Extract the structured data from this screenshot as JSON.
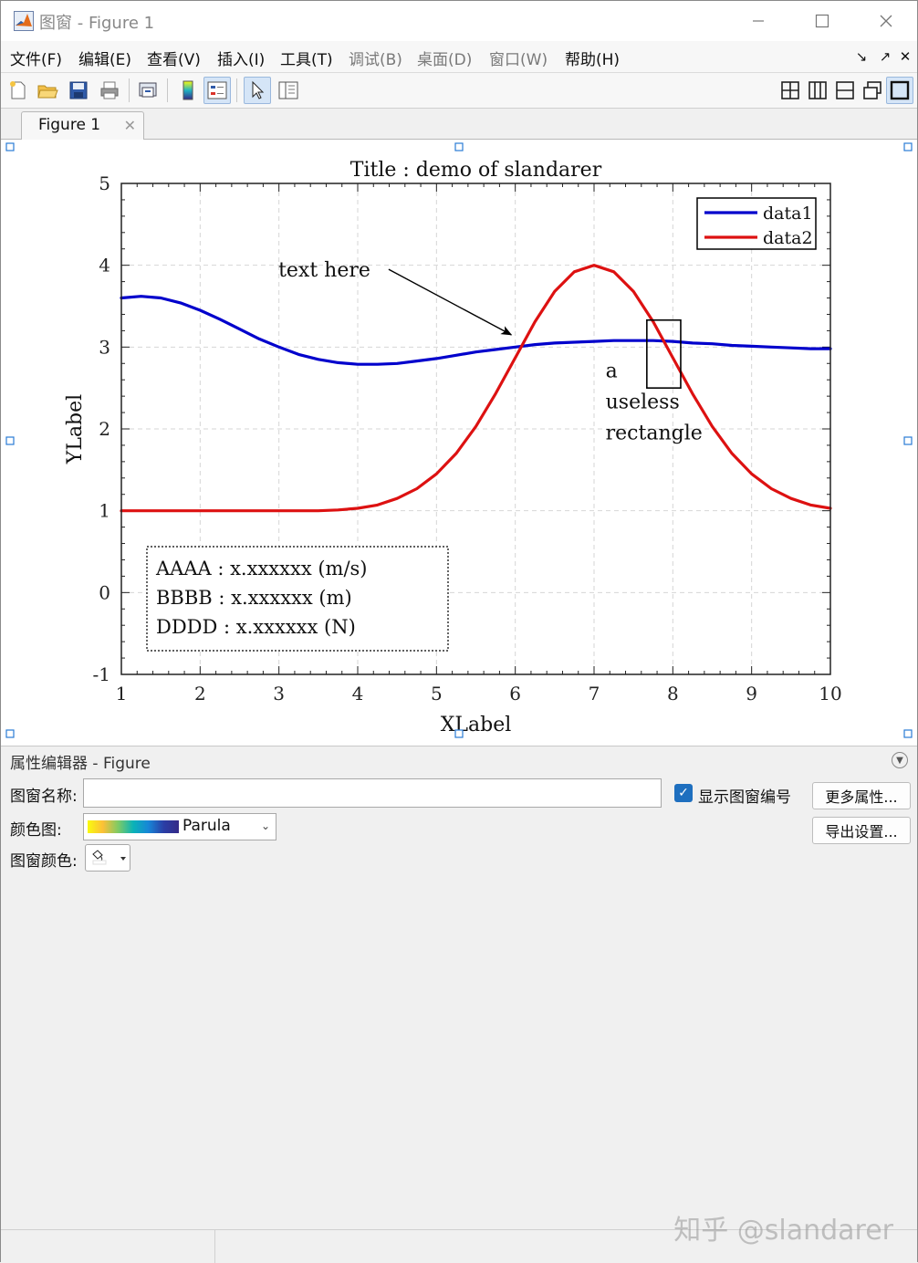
{
  "window": {
    "title": "图窗 - Figure 1",
    "minimize_icon": "minimize-icon",
    "maximize_icon": "maximize-icon",
    "close_icon": "close-icon"
  },
  "menu": {
    "items": [
      {
        "label": "文件(F)",
        "enabled": true
      },
      {
        "label": "编辑(E)",
        "enabled": true
      },
      {
        "label": "查看(V)",
        "enabled": true
      },
      {
        "label": "插入(I)",
        "enabled": true
      },
      {
        "label": "工具(T)",
        "enabled": true
      },
      {
        "label": "调试(B)",
        "enabled": false
      },
      {
        "label": "桌面(D)",
        "enabled": false
      },
      {
        "label": "窗口(W)",
        "enabled": false
      },
      {
        "label": "帮助(H)",
        "enabled": true
      }
    ],
    "corner_icons": [
      "dock-icon",
      "undock-icon",
      "close-icon"
    ]
  },
  "toolbar": {
    "left_icons": [
      "new-figure-icon",
      "open-file-icon",
      "save-icon",
      "print-icon",
      "link-plot-icon",
      "insert-colorbar-icon",
      "insert-legend-icon",
      "edit-plot-icon",
      "property-inspector-icon"
    ],
    "right_icons": [
      "tile-grid-icon",
      "tile-left-right-icon",
      "tile-top-bottom-icon",
      "float-icon",
      "maximize-icon"
    ]
  },
  "tab": {
    "label": "Figure 1"
  },
  "chart_data": {
    "type": "line",
    "title": "Title : demo of slandarer",
    "xlabel": "XLabel",
    "ylabel": "YLabel",
    "xlim": [
      1,
      10
    ],
    "ylim": [
      -1,
      5
    ],
    "xticks": [
      "1",
      "2",
      "3",
      "4",
      "5",
      "6",
      "7",
      "8",
      "9",
      "10"
    ],
    "yticks": [
      "-1",
      "0",
      "1",
      "2",
      "3",
      "4",
      "5"
    ],
    "grid": true,
    "grid_style": "dashed",
    "legend_position": "top-right",
    "x": [
      1,
      1.25,
      1.5,
      1.75,
      2,
      2.25,
      2.5,
      2.75,
      3,
      3.25,
      3.5,
      3.75,
      4,
      4.25,
      4.5,
      4.75,
      5,
      5.25,
      5.5,
      5.75,
      6,
      6.25,
      6.5,
      6.75,
      7,
      7.25,
      7.5,
      7.75,
      8,
      8.25,
      8.5,
      8.75,
      9,
      9.25,
      9.5,
      9.75,
      10
    ],
    "series": [
      {
        "name": "data1",
        "color": "#0000cc",
        "values": [
          3.6,
          3.62,
          3.6,
          3.54,
          3.45,
          3.34,
          3.22,
          3.1,
          3.0,
          2.91,
          2.85,
          2.81,
          2.79,
          2.79,
          2.8,
          2.83,
          2.86,
          2.9,
          2.94,
          2.97,
          3.0,
          3.03,
          3.05,
          3.06,
          3.07,
          3.08,
          3.08,
          3.08,
          3.07,
          3.05,
          3.04,
          3.02,
          3.01,
          3.0,
          2.99,
          2.98,
          2.98
        ]
      },
      {
        "name": "data2",
        "color": "#dd1111",
        "values": [
          1.0,
          1.0,
          1.0,
          1.0,
          1.0,
          1.0,
          1.0,
          1.0,
          1.0,
          1.0,
          1.0,
          1.01,
          1.03,
          1.07,
          1.15,
          1.27,
          1.45,
          1.7,
          2.03,
          2.43,
          2.87,
          3.31,
          3.68,
          3.92,
          4.0,
          3.92,
          3.68,
          3.31,
          2.87,
          2.43,
          2.03,
          1.7,
          1.45,
          1.27,
          1.15,
          1.07,
          1.03
        ]
      }
    ],
    "annotations": {
      "arrow_text": "text here",
      "arrow_from": [
        4.3,
        3.95
      ],
      "arrow_to": [
        5.95,
        3.15
      ],
      "rectangle": {
        "x": [
          7.67,
          8.1
        ],
        "y": [
          2.5,
          3.33
        ]
      },
      "rectangle_text": [
        "a",
        "useless",
        "rectangle"
      ],
      "rectangle_text_at": [
        7.1,
        2.72
      ],
      "textbox_lines": [
        "AAAA : x.xxxxxx (m/s)",
        "BBBB : x.xxxxxx (m)",
        "DDDD : x.xxxxxx (N)"
      ]
    }
  },
  "property_editor": {
    "title": "属性编辑器 - Figure",
    "name_label": "图窗名称:",
    "name_value": "",
    "show_number_label": "显示图窗编号",
    "show_number_checked": true,
    "more_props_button": "更多属性...",
    "export_button": "导出设置...",
    "colormap_label": "颜色图:",
    "colormap_value": "Parula",
    "color_label": "图窗颜色:"
  },
  "watermark": "知乎 @slandarer"
}
